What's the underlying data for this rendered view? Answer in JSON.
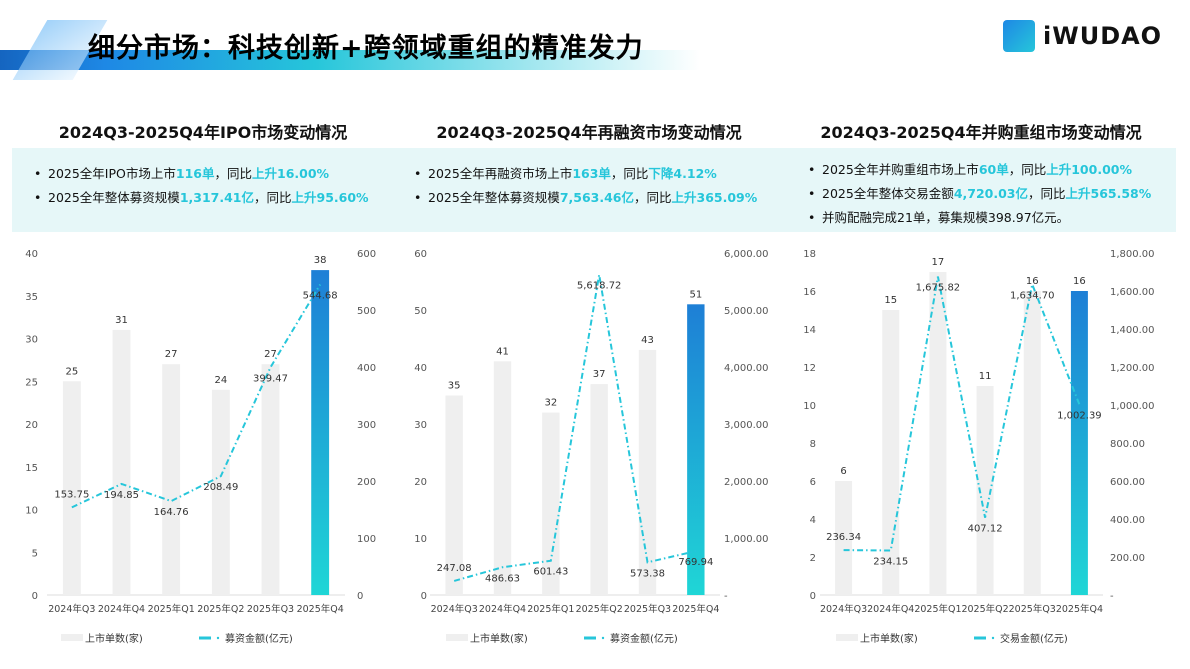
{
  "header": {
    "title": "细分市场：科技创新+跨领域重组的精准发力",
    "logo_text": "iWUDAO"
  },
  "colors": {
    "bar": "#efefef",
    "bar_highlight_top": "#1e7fd6",
    "bar_highlight_bottom": "#1fd6d6",
    "line": "#26c6da",
    "accent": "#26c6da"
  },
  "panels": [
    {
      "title": "2024Q3-2025Q4年IPO市场变动情况",
      "bullets": [
        [
          {
            "t": "2025全年IPO市场上市"
          },
          {
            "t": "116单",
            "hl": true
          },
          {
            "t": "，同比"
          },
          {
            "t": "上升16.00%",
            "hl": true
          }
        ],
        [
          {
            "t": "2025全年整体募资规模"
          },
          {
            "t": "1,317.41亿",
            "hl": true
          },
          {
            "t": "，同比"
          },
          {
            "t": "上升95.60%",
            "hl": true
          }
        ]
      ]
    },
    {
      "title": "2024Q3-2025Q4年再融资市场变动情况",
      "bullets": [
        [
          {
            "t": "2025全年再融资市场上市"
          },
          {
            "t": "163单",
            "hl": true
          },
          {
            "t": "，同比"
          },
          {
            "t": "下降4.12%",
            "hl": true
          }
        ],
        [
          {
            "t": "2025全年整体募资规模"
          },
          {
            "t": "7,563.46亿",
            "hl": true
          },
          {
            "t": "，同比"
          },
          {
            "t": "上升365.09%",
            "hl": true
          }
        ]
      ]
    },
    {
      "title": "2024Q3-2025Q4年并购重组市场变动情况",
      "bullets": [
        [
          {
            "t": "2025全年并购重组市场上市"
          },
          {
            "t": "60单",
            "hl": true
          },
          {
            "t": "，同比"
          },
          {
            "t": "上升100.00%",
            "hl": true
          }
        ],
        [
          {
            "t": "2025全年整体交易金额"
          },
          {
            "t": "4,720.03亿",
            "hl": true
          },
          {
            "t": "，同比"
          },
          {
            "t": "上升565.58%",
            "hl": true
          }
        ],
        [
          {
            "t": "并购配融完成21单，募集规模398.97亿元。"
          }
        ]
      ]
    }
  ],
  "chart_data": [
    {
      "type": "bar+line",
      "categories": [
        "2024年Q3",
        "2024年Q4",
        "2025年Q1",
        "2025年Q2",
        "2025年Q3",
        "2025年Q4"
      ],
      "series": [
        {
          "name": "上市单数(家)",
          "type": "bar",
          "axis": "left",
          "values": [
            25,
            31,
            27,
            24,
            27,
            38
          ]
        },
        {
          "name": "募资金额(亿元)",
          "type": "line",
          "axis": "right",
          "values": [
            153.75,
            194.85,
            164.76,
            208.49,
            399.47,
            544.68
          ]
        }
      ],
      "ylim_left": [
        0,
        40
      ],
      "ystep_left": 5,
      "ylim_right": [
        0,
        600
      ],
      "ystep_right": 100,
      "right_ticks": [
        "0",
        "100",
        "200",
        "300",
        "400",
        "500",
        "600"
      ],
      "line_labels": [
        "153.75",
        "194.85",
        "164.76",
        "208.49",
        "399.47",
        "544.68"
      ],
      "legend": "bottom"
    },
    {
      "type": "bar+line",
      "categories": [
        "2024年Q3",
        "2024年Q4",
        "2025年Q1",
        "2025年Q2",
        "2025年Q3",
        "2025年Q4"
      ],
      "series": [
        {
          "name": "上市单数(家)",
          "type": "bar",
          "axis": "left",
          "values": [
            35,
            41,
            32,
            37,
            43,
            51
          ]
        },
        {
          "name": "募资金额(亿元)",
          "type": "line",
          "axis": "right",
          "values": [
            247.08,
            486.63,
            601.43,
            5618.72,
            573.38,
            769.94
          ]
        }
      ],
      "ylim_left": [
        0,
        60
      ],
      "ystep_left": 10,
      "ylim_right": [
        0,
        6000
      ],
      "ystep_right": 1000,
      "right_ticks": [
        "-",
        "1,000.00",
        "2,000.00",
        "3,000.00",
        "4,000.00",
        "5,000.00",
        "6,000.00"
      ],
      "line_labels": [
        "247.08",
        "486.63",
        "601.43",
        "5,618.72",
        "573.38",
        "769.94"
      ],
      "legend": "bottom"
    },
    {
      "type": "bar+line",
      "categories": [
        "2024年Q3",
        "2024年Q4",
        "2025年Q1",
        "2025年Q2",
        "2025年Q3",
        "2025年Q4"
      ],
      "series": [
        {
          "name": "上市单数(家)",
          "type": "bar",
          "axis": "left",
          "values": [
            6,
            15,
            17,
            11,
            16,
            16
          ]
        },
        {
          "name": "交易金额(亿元)",
          "type": "line",
          "axis": "right",
          "values": [
            236.34,
            234.15,
            1675.82,
            407.12,
            1634.7,
            1002.39
          ]
        }
      ],
      "ylim_left": [
        0,
        18
      ],
      "ystep_left": 2,
      "ylim_right": [
        0,
        1800
      ],
      "ystep_right": 200,
      "right_ticks": [
        "-",
        "200.00",
        "400.00",
        "600.00",
        "800.00",
        "1,000.00",
        "1,200.00",
        "1,400.00",
        "1,600.00",
        "1,800.00"
      ],
      "line_labels": [
        "236.34",
        "234.15",
        "1,675.82",
        "407.12",
        "1,634.70",
        "1,002.39"
      ],
      "legend": "bottom"
    }
  ]
}
